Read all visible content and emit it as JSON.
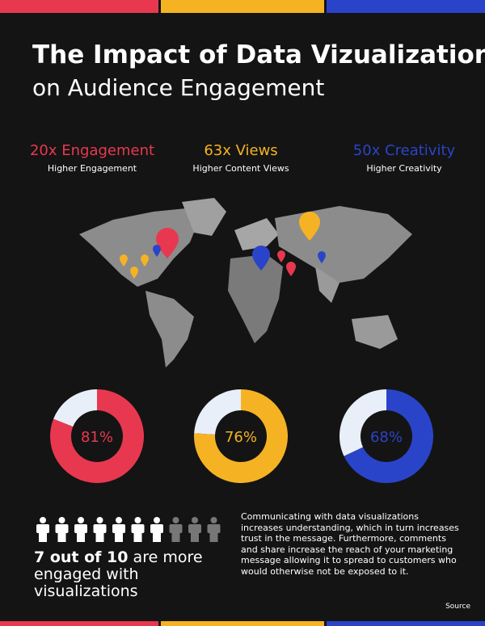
{
  "title": {
    "line1": "The Impact of Data Vizualization",
    "line2": "on Audience Engagement"
  },
  "stats": [
    {
      "headline": "20x Engagement",
      "caption": "Higher Engagement",
      "color": "#e8384f"
    },
    {
      "headline": "63x Views",
      "caption": "Higher Content Views",
      "color": "#f5b324"
    },
    {
      "headline": "50x Creativity",
      "caption": "Higher Creativity",
      "color": "#2a44c9"
    }
  ],
  "donuts": [
    {
      "value": 81,
      "label": "81%",
      "color": "#e8384f"
    },
    {
      "value": 76,
      "label": "76%",
      "color": "#f5b324"
    },
    {
      "value": 68,
      "label": "68%",
      "color": "#2a44c9"
    }
  ],
  "people": {
    "count": 7,
    "total": 10,
    "headline": "7 out of 10",
    "text": "are more engaged with visualizations"
  },
  "paragraph": "Communicating with data visualizations increases understanding, which in turn increases trust in the message. Furthermore, comments and share increase the reach of your marketing message allowing it to spread to customers who would otherwise not be exposed to it.",
  "source": "Source"
}
